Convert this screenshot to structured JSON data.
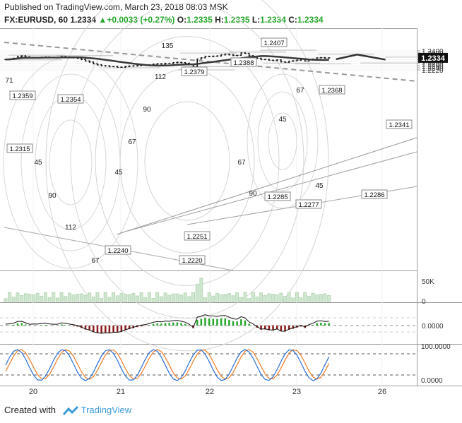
{
  "header": {
    "line1": "Published on TradingView.com, March 23, 2018 08:03 MSK",
    "symbol": "FX:EURUSD, 60",
    "last": "1.2334",
    "change_arrow": "▲",
    "change": "+0.0033 (+0.27%)",
    "o_label": "O:",
    "o": "1.2335",
    "h_label": "H:",
    "h": "1.2335",
    "l_label": "L:",
    "l": "1.2334",
    "c_label": "C:",
    "c": "1.2334"
  },
  "footer": {
    "created_with": "Created with",
    "brand": "TradingView"
  },
  "colors": {
    "up": "#26a62b",
    "down": "#8b1a1a",
    "price_line": "#111111",
    "ma": "#3a3a3a",
    "trend": "#888888",
    "stoch_k": "#2b6fd6",
    "stoch_d": "#f07b22",
    "volume": "#cfe6cf"
  },
  "chart_data": {
    "type": "candlestick",
    "price_axis": {
      "min": 1.2215,
      "max": 1.2405,
      "ticks": [
        "1.2400",
        "1.2380",
        "1.2360",
        "1.2340",
        "1.2320",
        "1.2300",
        "1.2280",
        "1.2260",
        "1.2240",
        "1.2220"
      ],
      "current_label": "1.2334"
    },
    "time_axis": {
      "ticks": [
        "20",
        "21",
        "22",
        "23",
        "26"
      ]
    },
    "closes": [
      1.2318,
      1.2322,
      1.233,
      1.2346,
      1.2352,
      1.2344,
      1.2334,
      1.2336,
      1.2336,
      1.234,
      1.2342,
      1.2338,
      1.2336,
      1.2336,
      1.2346,
      1.2342,
      1.2338,
      1.2334,
      1.233,
      1.2318,
      1.2304,
      1.2294,
      1.2278,
      1.2268,
      1.226,
      1.2258,
      1.2252,
      1.2252,
      1.2246,
      1.2246,
      1.2252,
      1.2256,
      1.2258,
      1.2262,
      1.2264,
      1.2264,
      1.2268,
      1.2274,
      1.2278,
      1.2276,
      1.2282,
      1.2282,
      1.2288,
      1.2292,
      1.2288,
      1.2284,
      1.2272,
      1.2252,
      1.2322,
      1.2334,
      1.2348,
      1.2346,
      1.235,
      1.2352,
      1.2362,
      1.2368,
      1.2362,
      1.2356,
      1.2358,
      1.238,
      1.2376,
      1.2354,
      1.2344,
      1.233,
      1.2318,
      1.232,
      1.2312,
      1.2308,
      1.2314,
      1.2296,
      1.2292,
      1.2302,
      1.2306,
      1.2312,
      1.2318,
      1.2304,
      1.2316,
      1.2322,
      1.2334,
      1.2336,
      1.2332,
      1.2334
    ],
    "extremes": [
      {
        "label": "1.2359",
        "value": 1.2359
      },
      {
        "label": "1.2354",
        "value": 1.2354
      },
      {
        "label": "1.2315",
        "value": 1.2315
      },
      {
        "label": "1.2240",
        "value": 1.224
      },
      {
        "label": "1.2251",
        "value": 1.2251
      },
      {
        "label": "1.2388",
        "value": 1.2388
      },
      {
        "label": "1.2285",
        "value": 1.2285
      },
      {
        "label": "1.2379",
        "value": 1.2379
      },
      {
        "label": "1.2407",
        "value": 1.2407
      },
      {
        "label": "1.2220",
        "value": 1.222
      },
      {
        "label": "1.2368",
        "value": 1.2368
      },
      {
        "label": "1.2341",
        "value": 1.2341
      },
      {
        "label": "1.2277",
        "value": 1.2277
      },
      {
        "label": "1.2286",
        "value": 1.2286
      }
    ],
    "fib_labels": [
      "71",
      "135",
      "112",
      "90",
      "67",
      "45",
      "45",
      "67",
      "90",
      "112",
      "67",
      "45",
      "90",
      "45",
      "67"
    ],
    "volume_axis": {
      "ticks": [
        "50K",
        "0"
      ]
    },
    "macd_axis": {
      "ticks": [
        "0.0000"
      ]
    },
    "stoch_axis": {
      "ticks": [
        "100.0000",
        "0.0000"
      ]
    }
  }
}
